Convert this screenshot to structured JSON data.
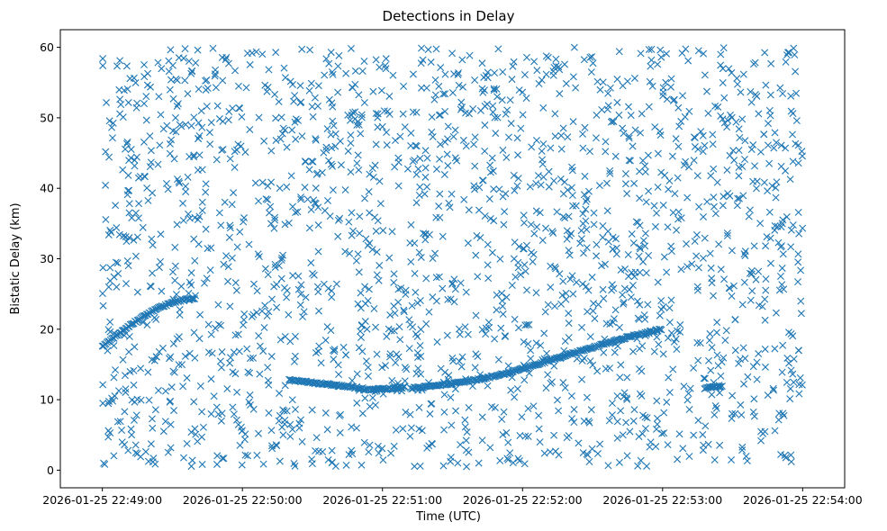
{
  "chart_data": {
    "type": "scatter",
    "title": "Detections in Delay",
    "xlabel": "Time (UTC)",
    "ylabel": "Bistatic Delay (km)",
    "marker": "x",
    "color": "#1f77b4",
    "xlim_seconds_after_22_49_00": [
      -18,
      318
    ],
    "ylim": [
      -2.5,
      62.5
    ],
    "xticks": [
      {
        "value": 0,
        "label": "2026-01-25 22:49:00"
      },
      {
        "value": 60,
        "label": "2026-01-25 22:50:00"
      },
      {
        "value": 120,
        "label": "2026-01-25 22:51:00"
      },
      {
        "value": 180,
        "label": "2026-01-25 22:52:00"
      },
      {
        "value": 240,
        "label": "2026-01-25 22:53:00"
      },
      {
        "value": 300,
        "label": "2026-01-25 22:54:00"
      }
    ],
    "yticks": [
      {
        "value": 0,
        "label": "0"
      },
      {
        "value": 10,
        "label": "10"
      },
      {
        "value": 20,
        "label": "20"
      },
      {
        "value": 30,
        "label": "30"
      },
      {
        "value": 40,
        "label": "40"
      },
      {
        "value": 50,
        "label": "50"
      },
      {
        "value": 60,
        "label": "60"
      }
    ],
    "clutter": {
      "description": "uniformly scattered false detections",
      "x_range_seconds": [
        0,
        300
      ],
      "y_range_km": [
        0.5,
        60
      ],
      "approx_count": 2000
    },
    "tracks": [
      {
        "name": "track-1",
        "points": [
          [
            80,
            12.8
          ],
          [
            88,
            12.5
          ],
          [
            96,
            12.2
          ],
          [
            104,
            11.9
          ],
          [
            112,
            11.6
          ]
        ]
      },
      {
        "name": "track-2",
        "points": [
          [
            112,
            11.4
          ],
          [
            118,
            11.5
          ],
          [
            124,
            11.6
          ],
          [
            130,
            11.8
          ]
        ]
      },
      {
        "name": "track-3",
        "points": [
          [
            132,
            11.6
          ],
          [
            140,
            11.9
          ],
          [
            150,
            12.3
          ],
          [
            160,
            12.8
          ],
          [
            170,
            13.5
          ],
          [
            180,
            14.4
          ],
          [
            190,
            15.4
          ],
          [
            200,
            16.4
          ],
          [
            210,
            17.4
          ],
          [
            220,
            18.4
          ],
          [
            230,
            19.3
          ],
          [
            240,
            20.0
          ]
        ]
      },
      {
        "name": "track-4",
        "points": [
          [
            0,
            17.5
          ],
          [
            8,
            19.6
          ],
          [
            16,
            21.5
          ],
          [
            24,
            23.0
          ],
          [
            32,
            24.0
          ],
          [
            40,
            24.4
          ]
        ]
      },
      {
        "name": "track-5",
        "points": [
          [
            258,
            11.6
          ],
          [
            262,
            11.8
          ],
          [
            266,
            11.9
          ]
        ]
      }
    ]
  }
}
